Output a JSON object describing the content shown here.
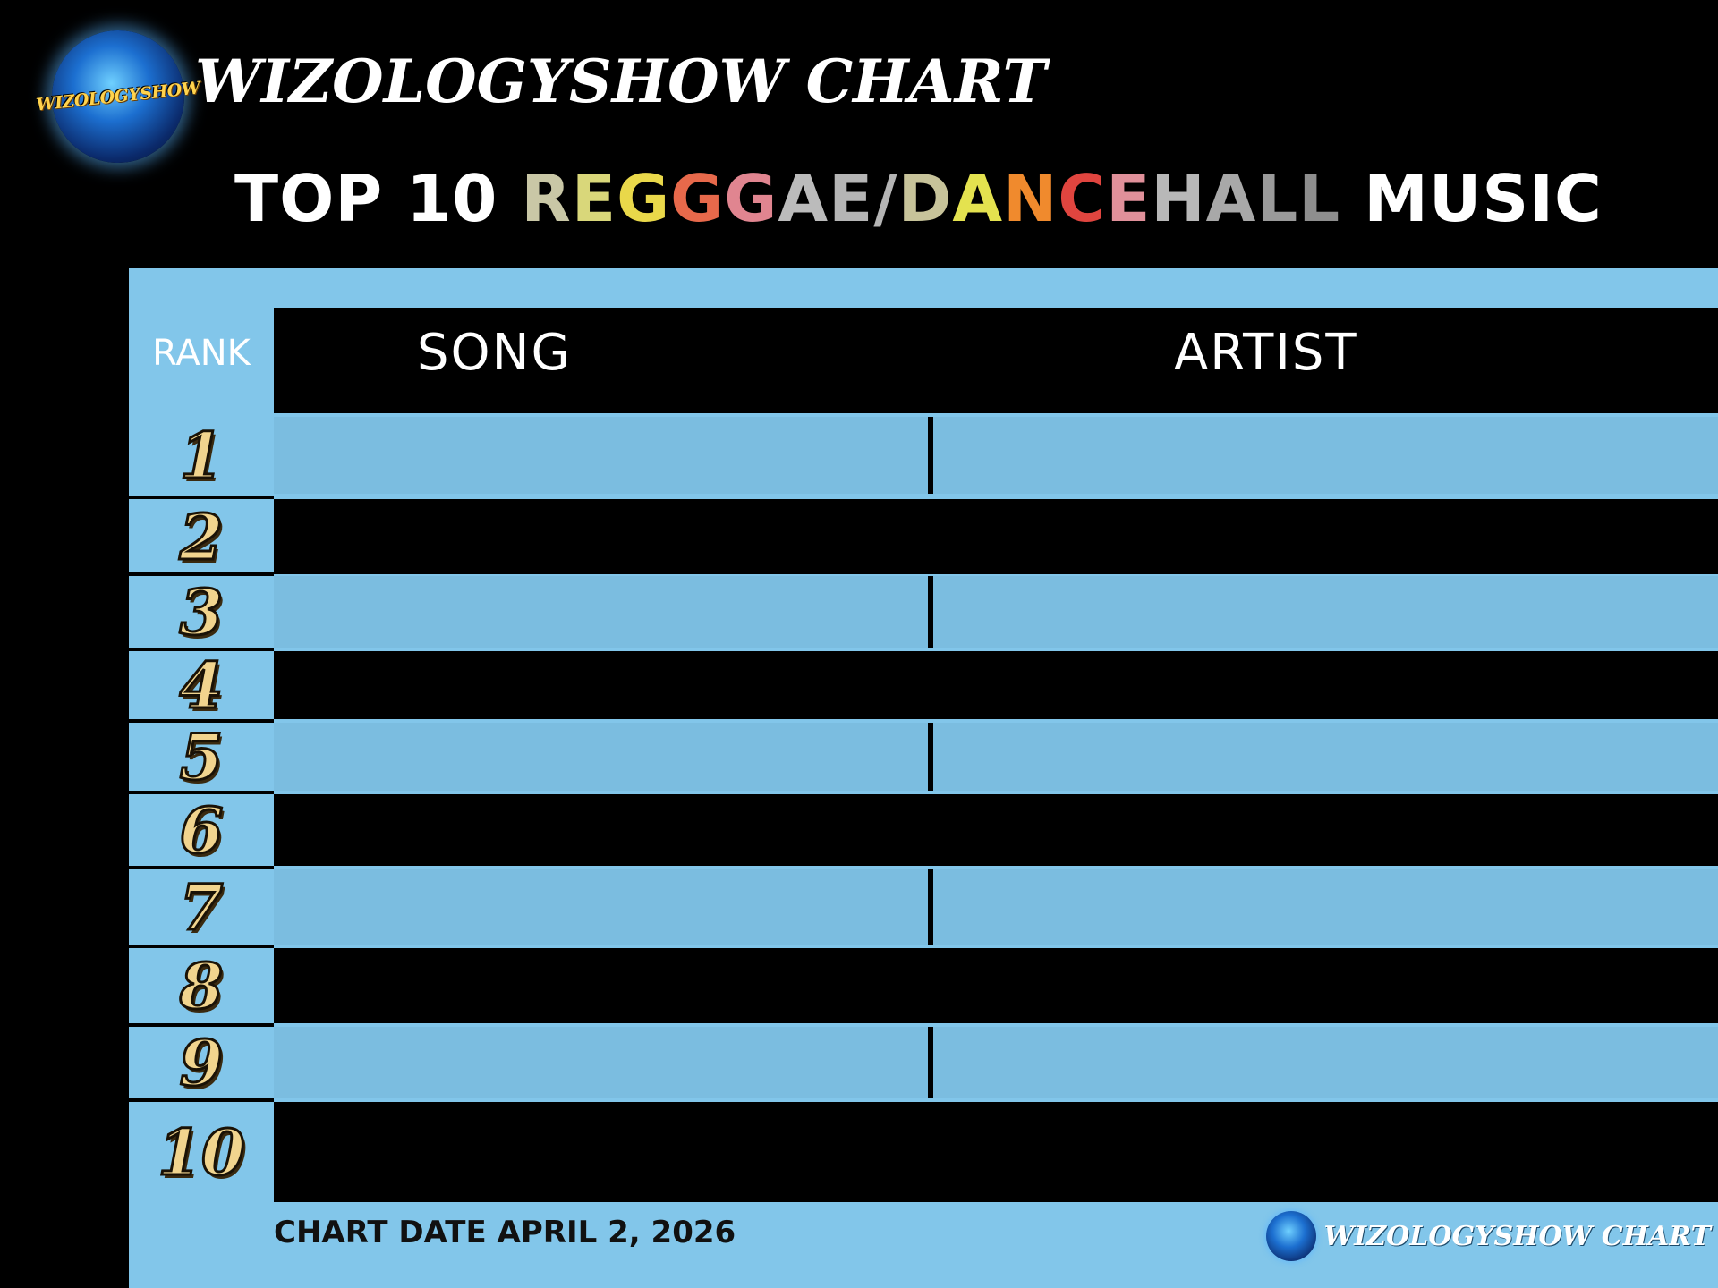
{
  "brand": {
    "logo_text": "WIZOLOGYSHOW",
    "title": "WIZOLOGYSHOW CHART"
  },
  "subtitle": {
    "prefix": "TOP 10 ",
    "genre_letters": [
      {
        "ch": "R",
        "color": "#c9c7a6"
      },
      {
        "ch": "E",
        "color": "#d9d77a"
      },
      {
        "ch": "G",
        "color": "#e9d84a"
      },
      {
        "ch": "G",
        "color": "#e7694b"
      },
      {
        "ch": "G",
        "color": "#e08590"
      },
      {
        "ch": "A",
        "color": "#bbbbbb"
      },
      {
        "ch": "E",
        "color": "#b5b5b5"
      },
      {
        "ch": "/",
        "color": "#b5b5b5"
      },
      {
        "ch": "D",
        "color": "#c7c39a"
      },
      {
        "ch": "A",
        "color": "#e4e24f"
      },
      {
        "ch": "N",
        "color": "#f08a2d"
      },
      {
        "ch": "C",
        "color": "#e0453f"
      },
      {
        "ch": "E",
        "color": "#e0909a"
      },
      {
        "ch": "H",
        "color": "#b8b8b8"
      },
      {
        "ch": "A",
        "color": "#a8a8a8"
      },
      {
        "ch": "L",
        "color": "#9a9a9a"
      },
      {
        "ch": "L",
        "color": "#8e8e8e"
      }
    ],
    "suffix": " MUSIC"
  },
  "table": {
    "rank_header": "RANK",
    "song_header": "SONG",
    "artist_header": "ARTIST",
    "rows": [
      {
        "rank": "1",
        "song": "",
        "artist": ""
      },
      {
        "rank": "2",
        "song": "",
        "artist": ""
      },
      {
        "rank": "3",
        "song": "",
        "artist": ""
      },
      {
        "rank": "4",
        "song": "",
        "artist": ""
      },
      {
        "rank": "5",
        "song": "",
        "artist": ""
      },
      {
        "rank": "6",
        "song": "",
        "artist": ""
      },
      {
        "rank": "7",
        "song": "",
        "artist": ""
      },
      {
        "rank": "8",
        "song": "",
        "artist": ""
      },
      {
        "rank": "9",
        "song": "",
        "artist": ""
      },
      {
        "rank": "10",
        "song": "",
        "artist": ""
      }
    ]
  },
  "footer": {
    "chart_date": "CHART DATE APRIL 2, 2026",
    "brand_text": "WIZOLOGYSHOW CHART"
  },
  "colors": {
    "background": "#000000",
    "board": "#82c6ea",
    "row_light": "#7bbde0",
    "rank_gold": "#f1d48e"
  }
}
